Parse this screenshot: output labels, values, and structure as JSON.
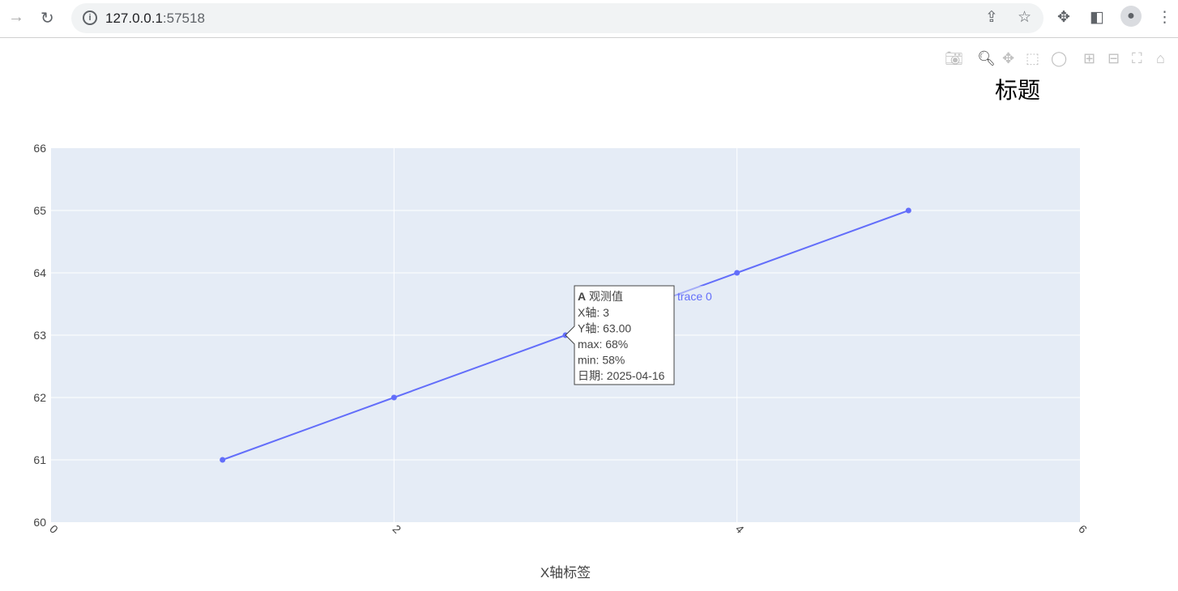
{
  "browser": {
    "url_host": "127.0.0.1",
    "url_port": ":57518"
  },
  "modebar": [
    "camera-icon",
    "zoom-icon",
    "pan-icon",
    "box-select-icon",
    "lasso-icon",
    "zoom-in-icon",
    "zoom-out-icon",
    "autoscale-icon",
    "home-icon"
  ],
  "chart_data": {
    "type": "line",
    "title": "标题",
    "xlabel": "X轴标签",
    "ylabel": "",
    "xlim": [
      0,
      6
    ],
    "ylim": [
      60,
      66
    ],
    "xticks": [
      0,
      2,
      4,
      6
    ],
    "yticks": [
      60,
      61,
      62,
      63,
      64,
      65,
      66
    ],
    "grid": true,
    "series": [
      {
        "x": [
          1,
          2,
          3,
          4,
          5
        ],
        "y": [
          61,
          62,
          63,
          64,
          65
        ],
        "color": "#636efa"
      }
    ],
    "hover": {
      "x": 3,
      "y": 63,
      "lines": [
        "X轴: 3",
        "Y轴: 63.00",
        "max: 68%",
        "min: 58%",
        "日期: 2025-04-16"
      ],
      "head_bold": "A",
      "head": " 观测值",
      "trace": "trace 0"
    }
  }
}
